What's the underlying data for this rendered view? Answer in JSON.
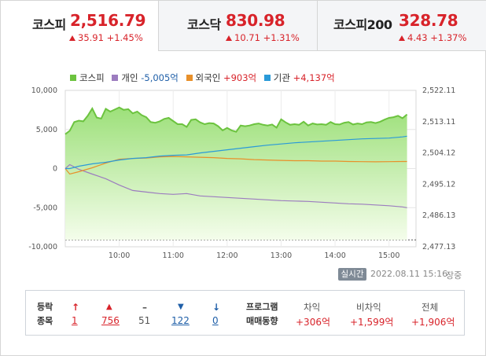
{
  "tabs": [
    {
      "name": "코스피",
      "value": "2,516.79",
      "change": "35.91 +1.45%",
      "active": true
    },
    {
      "name": "코스닥",
      "value": "830.98",
      "change": "10.71 +1.31%",
      "active": false
    },
    {
      "name": "코스피200",
      "value": "328.78",
      "change": "4.43 +1.37%",
      "active": false
    }
  ],
  "legend": {
    "kospi": {
      "label": "코스피",
      "value": ""
    },
    "individual": {
      "label": "개인",
      "value": "-5,005억"
    },
    "foreign": {
      "label": "외국인",
      "value": "+903억"
    },
    "institution": {
      "label": "기관",
      "value": "+4,137억"
    }
  },
  "colors": {
    "kospi": "#6cc33f",
    "individual": "#9c7cbf",
    "foreign": "#e8902a",
    "institution": "#2a9ad8",
    "up": "#d8232a",
    "down": "#1f5fa8"
  },
  "chart_data": {
    "type": "line",
    "x_ticks": [
      "10:00",
      "11:00",
      "12:00",
      "13:00",
      "14:00",
      "15:00"
    ],
    "y_left_ticks": [
      "10,000",
      "5,000",
      "0",
      "-5,000",
      "-10,000"
    ],
    "y_left_range": [
      -10000,
      10000
    ],
    "y_right_ticks": [
      "2,522.11",
      "2,513.11",
      "2,504.12",
      "2,495.12",
      "2,486.13",
      "2,477.13"
    ],
    "y_right_range": [
      2477.13,
      2522.11
    ],
    "x_range": [
      "09:00",
      "15:30"
    ],
    "baseline_dashed": 2479.1,
    "series": [
      {
        "name": "코스피",
        "axis": "right",
        "x": [
          "09:00",
          "09:05",
          "09:10",
          "09:15",
          "09:20",
          "09:25",
          "09:30",
          "09:35",
          "09:40",
          "09:45",
          "09:50",
          "09:55",
          "10:00",
          "10:05",
          "10:10",
          "10:15",
          "10:20",
          "10:25",
          "10:30",
          "10:35",
          "10:40",
          "10:45",
          "10:50",
          "10:55",
          "11:00",
          "11:05",
          "11:10",
          "11:15",
          "11:20",
          "11:25",
          "11:30",
          "11:35",
          "11:40",
          "11:45",
          "11:50",
          "11:55",
          "12:00",
          "12:05",
          "12:10",
          "12:15",
          "12:20",
          "12:25",
          "12:30",
          "12:35",
          "12:40",
          "12:45",
          "12:50",
          "12:55",
          "13:00",
          "13:05",
          "13:10",
          "13:15",
          "13:20",
          "13:25",
          "13:30",
          "13:35",
          "13:40",
          "13:45",
          "13:50",
          "13:55",
          "14:00",
          "14:05",
          "14:10",
          "14:15",
          "14:20",
          "14:25",
          "14:30",
          "14:35",
          "14:40",
          "14:45",
          "14:50",
          "14:55",
          "15:00",
          "15:05",
          "15:10",
          "15:15",
          "15:20"
        ],
        "values": [
          2509.5,
          2510.5,
          2513.0,
          2513.4,
          2513.2,
          2514.8,
          2516.9,
          2514.3,
          2514.0,
          2516.8,
          2516.0,
          2516.6,
          2517.2,
          2516.5,
          2516.7,
          2515.5,
          2516.0,
          2515.0,
          2514.4,
          2513.0,
          2512.8,
          2513.2,
          2513.9,
          2514.2,
          2513.3,
          2512.4,
          2512.4,
          2511.6,
          2513.6,
          2513.8,
          2512.9,
          2512.4,
          2512.7,
          2512.6,
          2511.8,
          2510.6,
          2511.3,
          2510.6,
          2510.2,
          2512.0,
          2511.8,
          2512.0,
          2512.4,
          2512.6,
          2512.2,
          2512.0,
          2512.3,
          2511.4,
          2513.8,
          2512.9,
          2512.2,
          2512.4,
          2512.2,
          2513.1,
          2512.0,
          2512.6,
          2512.3,
          2512.4,
          2512.2,
          2513.0,
          2512.4,
          2512.3,
          2512.8,
          2513.0,
          2512.3,
          2512.6,
          2512.4,
          2512.9,
          2513.0,
          2512.7,
          2513.1,
          2513.7,
          2514.2,
          2514.4,
          2514.8,
          2514.1,
          2515.2
        ]
      },
      {
        "name": "개인",
        "value_label": "-5,005억",
        "axis": "left",
        "x": [
          "09:00",
          "09:05",
          "09:15",
          "09:30",
          "09:45",
          "10:00",
          "10:15",
          "10:30",
          "10:45",
          "11:00",
          "11:15",
          "11:30",
          "11:45",
          "12:00",
          "12:15",
          "12:30",
          "12:45",
          "13:00",
          "13:15",
          "13:30",
          "13:45",
          "14:00",
          "14:15",
          "14:30",
          "14:45",
          "15:00",
          "15:15",
          "15:20"
        ],
        "values": [
          0,
          500,
          -100,
          -700,
          -1300,
          -2100,
          -2800,
          -3000,
          -3200,
          -3300,
          -3200,
          -3500,
          -3600,
          -3700,
          -3800,
          -3900,
          -4000,
          -4100,
          -4150,
          -4200,
          -4300,
          -4400,
          -4500,
          -4550,
          -4650,
          -4750,
          -4900,
          -5005
        ]
      },
      {
        "name": "외국인",
        "value_label": "+903억",
        "axis": "left",
        "x": [
          "09:00",
          "09:05",
          "09:15",
          "09:30",
          "09:45",
          "10:00",
          "10:15",
          "10:30",
          "10:45",
          "11:00",
          "11:15",
          "11:30",
          "11:45",
          "12:00",
          "12:15",
          "12:30",
          "12:45",
          "13:00",
          "13:15",
          "13:30",
          "13:45",
          "14:00",
          "14:15",
          "14:30",
          "14:45",
          "15:00",
          "15:15",
          "15:20"
        ],
        "values": [
          0,
          -700,
          -400,
          100,
          700,
          1200,
          1300,
          1350,
          1500,
          1550,
          1500,
          1450,
          1400,
          1300,
          1250,
          1150,
          1100,
          1050,
          1000,
          1000,
          950,
          950,
          900,
          880,
          860,
          880,
          900,
          903
        ]
      },
      {
        "name": "기관",
        "value_label": "+4,137억",
        "axis": "left",
        "x": [
          "09:00",
          "09:05",
          "09:15",
          "09:30",
          "09:45",
          "10:00",
          "10:15",
          "10:30",
          "10:45",
          "11:00",
          "11:15",
          "11:30",
          "11:45",
          "12:00",
          "12:15",
          "12:30",
          "12:45",
          "13:00",
          "13:15",
          "13:30",
          "13:45",
          "14:00",
          "14:15",
          "14:30",
          "14:45",
          "15:00",
          "15:15",
          "15:20"
        ],
        "values": [
          0,
          0,
          300,
          600,
          800,
          1100,
          1300,
          1400,
          1600,
          1700,
          1750,
          2000,
          2200,
          2400,
          2600,
          2800,
          3000,
          3150,
          3300,
          3400,
          3500,
          3600,
          3700,
          3800,
          3850,
          3900,
          4050,
          4137
        ]
      }
    ]
  },
  "realtime": {
    "badge": "실시간",
    "time": "2022.08.11 15:16",
    "status": "장중"
  },
  "bottom": {
    "label_line1": "등락",
    "label_line2": "종목",
    "items": [
      {
        "icon": "↑",
        "value": "1",
        "color": "#d8232a"
      },
      {
        "icon": "▲",
        "value": "756",
        "color": "#d8232a"
      },
      {
        "icon": "–",
        "value": "51",
        "color": "#555555"
      },
      {
        "icon": "▼",
        "value": "122",
        "color": "#1f5fa8"
      },
      {
        "icon": "↓",
        "value": "0",
        "color": "#1f5fa8"
      }
    ],
    "program_line1": "프로그램",
    "program_line2": "매매동향",
    "program": [
      {
        "head": "차익",
        "value": "+306억"
      },
      {
        "head": "비차익",
        "value": "+1,599억"
      },
      {
        "head": "전체",
        "value": "+1,906억"
      }
    ]
  }
}
